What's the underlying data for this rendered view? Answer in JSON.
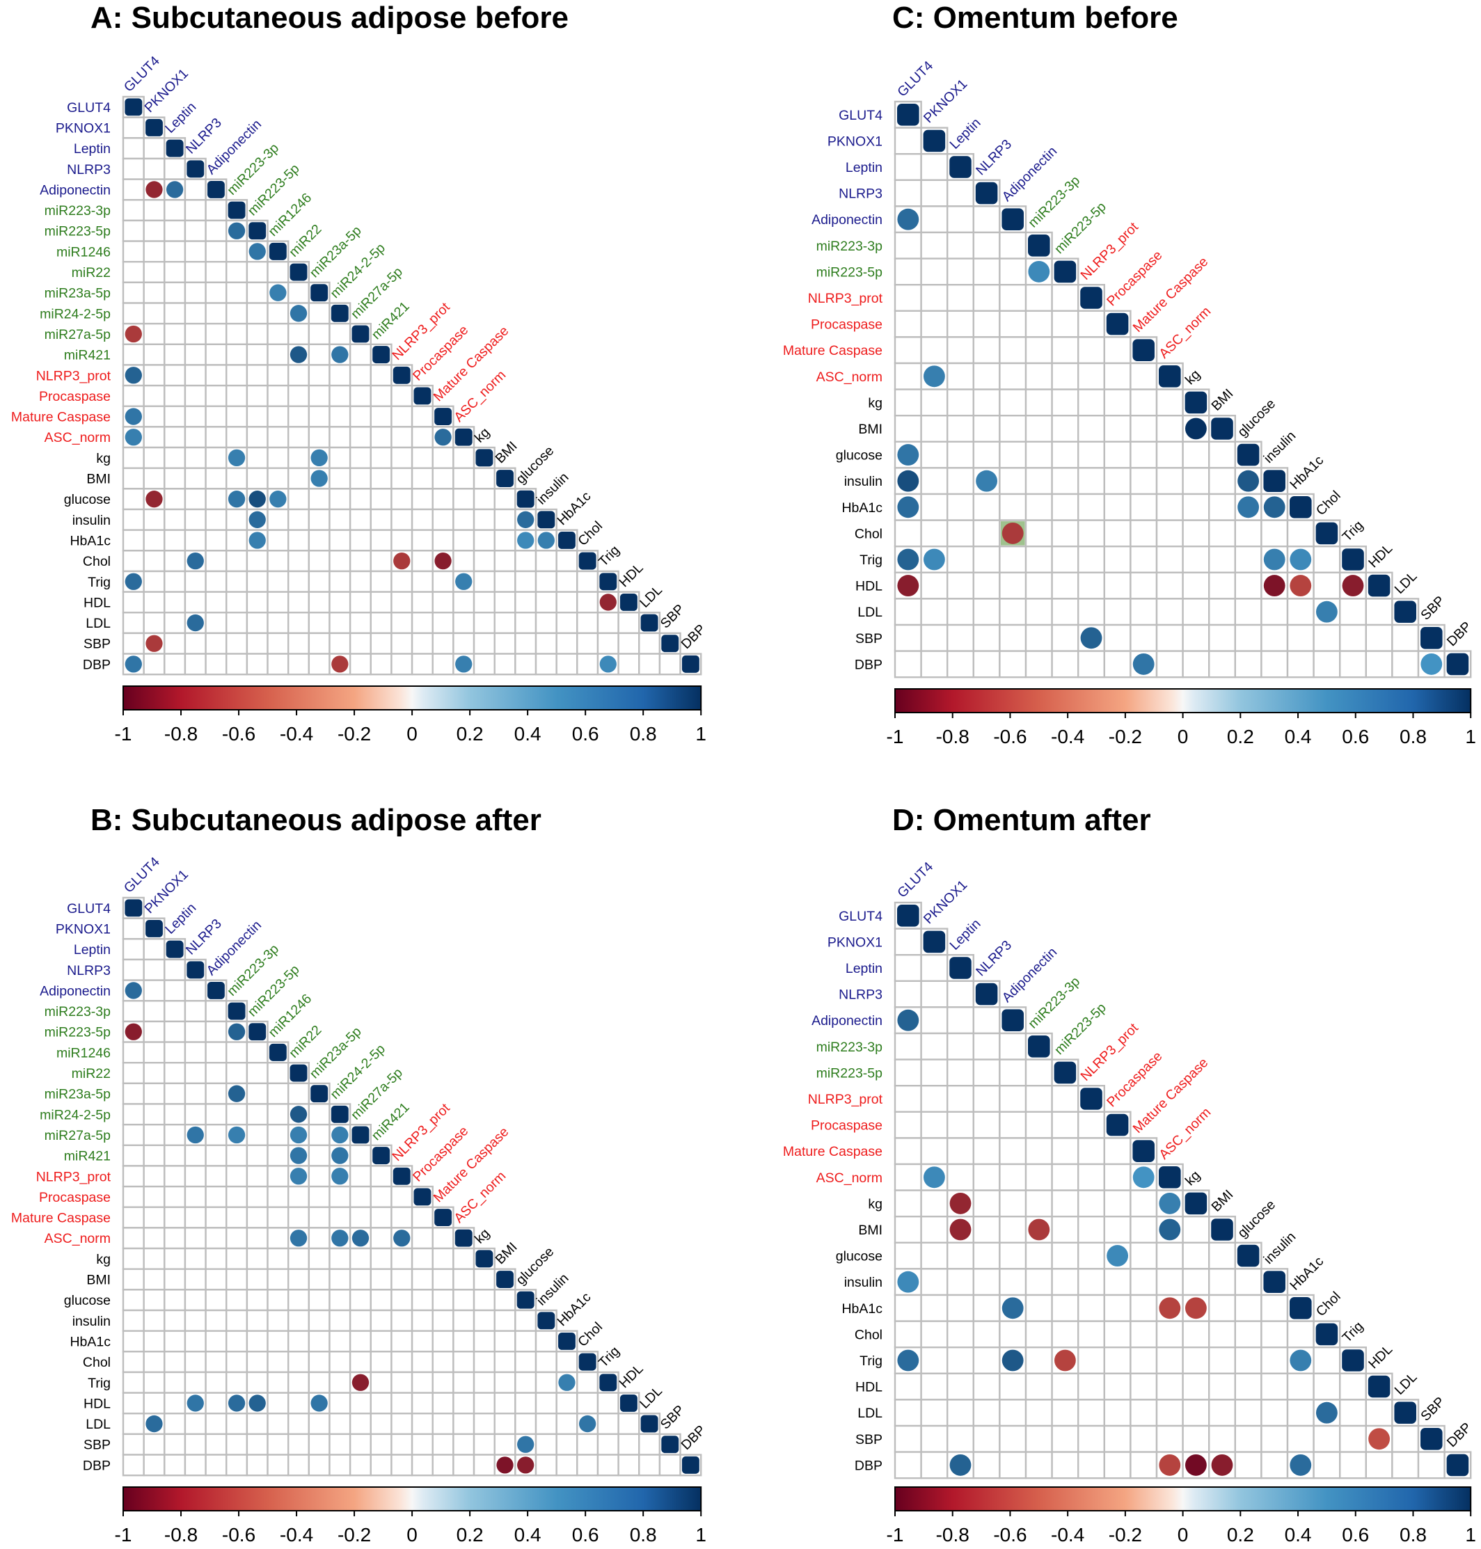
{
  "colors": {
    "gene": "#1a1a8c",
    "mirna": "#2e7d1e",
    "protein": "#ee1c1c",
    "clinical": "#000000",
    "grid": "#bdbdbd",
    "highlight": "#9fc28e",
    "scale_neg1": "#67001f",
    "scale_neg05": "#d6604d",
    "scale_0": "#f7f7f7",
    "scale_pos05": "#4393c3",
    "scale_pos1": "#053061"
  },
  "chart_data": [
    {
      "type": "heatmap",
      "title": "A: Subcutaneous adipose before",
      "variables": [
        "GLUT4",
        "PKNOX1",
        "Leptin",
        "NLRP3",
        "Adiponectin",
        "miR223-3p",
        "miR223-5p",
        "miR1246",
        "miR22",
        "miR23a-5p",
        "miR24-2-5p",
        "miR27a-5p",
        "miR421",
        "NLRP3_prot",
        "Procaspase",
        "Mature Caspase",
        "ASC_norm",
        "kg",
        "BMI",
        "glucose",
        "insulin",
        "HbA1c",
        "Chol",
        "Trig",
        "HDL",
        "LDL",
        "SBP",
        "DBP"
      ],
      "groups": [
        "gene",
        "gene",
        "gene",
        "gene",
        "gene",
        "mirna",
        "mirna",
        "mirna",
        "mirna",
        "mirna",
        "mirna",
        "mirna",
        "mirna",
        "protein",
        "protein",
        "protein",
        "protein",
        "clinical",
        "clinical",
        "clinical",
        "clinical",
        "clinical",
        "clinical",
        "clinical",
        "clinical",
        "clinical",
        "clinical",
        "clinical"
      ],
      "color_scale": {
        "min": -1,
        "max": 1,
        "ticks": [
          "-1",
          "-0.8",
          "-0.6",
          "-0.4",
          "-0.2",
          "0",
          "0.2",
          "0.4",
          "0.6",
          "0.8",
          "1"
        ]
      },
      "correlations": [
        {
          "row": "Adiponectin",
          "col": "PKNOX1",
          "r": -0.8
        },
        {
          "row": "Adiponectin",
          "col": "Leptin",
          "r": 0.7
        },
        {
          "row": "miR223-5p",
          "col": "miR223-3p",
          "r": 0.7
        },
        {
          "row": "miR1246",
          "col": "miR223-5p",
          "r": 0.65
        },
        {
          "row": "miR23a-5p",
          "col": "miR1246",
          "r": 0.6
        },
        {
          "row": "miR24-2-5p",
          "col": "miR22",
          "r": 0.65
        },
        {
          "row": "miR27a-5p",
          "col": "GLUT4",
          "r": -0.7
        },
        {
          "row": "miR421",
          "col": "miR22",
          "r": 0.8
        },
        {
          "row": "miR421",
          "col": "miR24-2-5p",
          "r": 0.65
        },
        {
          "row": "NLRP3_prot",
          "col": "GLUT4",
          "r": 0.75
        },
        {
          "row": "Mature Caspase",
          "col": "GLUT4",
          "r": 0.65
        },
        {
          "row": "ASC_norm",
          "col": "GLUT4",
          "r": 0.6
        },
        {
          "row": "ASC_norm",
          "col": "Mature Caspase",
          "r": 0.7
        },
        {
          "row": "kg",
          "col": "miR223-3p",
          "r": 0.6
        },
        {
          "row": "kg",
          "col": "miR23a-5p",
          "r": 0.6
        },
        {
          "row": "BMI",
          "col": "miR23a-5p",
          "r": 0.6
        },
        {
          "row": "glucose",
          "col": "PKNOX1",
          "r": -0.8
        },
        {
          "row": "glucose",
          "col": "miR223-3p",
          "r": 0.65
        },
        {
          "row": "glucose",
          "col": "miR223-5p",
          "r": 0.85
        },
        {
          "row": "glucose",
          "col": "miR1246",
          "r": 0.6
        },
        {
          "row": "insulin",
          "col": "miR223-5p",
          "r": 0.7
        },
        {
          "row": "insulin",
          "col": "glucose",
          "r": 0.7
        },
        {
          "row": "HbA1c",
          "col": "miR223-5p",
          "r": 0.6
        },
        {
          "row": "HbA1c",
          "col": "glucose",
          "r": 0.55
        },
        {
          "row": "HbA1c",
          "col": "insulin",
          "r": 0.6
        },
        {
          "row": "Chol",
          "col": "NLRP3",
          "r": 0.7
        },
        {
          "row": "Chol",
          "col": "NLRP3_prot",
          "r": -0.7
        },
        {
          "row": "Chol",
          "col": "Mature Caspase",
          "r": -0.85
        },
        {
          "row": "Trig",
          "col": "GLUT4",
          "r": 0.7
        },
        {
          "row": "Trig",
          "col": "ASC_norm",
          "r": 0.6
        },
        {
          "row": "HDL",
          "col": "Trig",
          "r": -0.8
        },
        {
          "row": "LDL",
          "col": "NLRP3",
          "r": 0.7
        },
        {
          "row": "SBP",
          "col": "PKNOX1",
          "r": -0.7
        },
        {
          "row": "DBP",
          "col": "GLUT4",
          "r": 0.65
        },
        {
          "row": "DBP",
          "col": "miR24-2-5p",
          "r": -0.7
        },
        {
          "row": "DBP",
          "col": "ASC_norm",
          "r": 0.6
        },
        {
          "row": "DBP",
          "col": "Trig",
          "r": 0.55
        }
      ]
    },
    {
      "type": "heatmap",
      "title": "B: Subcutaneous adipose after",
      "variables": [
        "GLUT4",
        "PKNOX1",
        "Leptin",
        "NLRP3",
        "Adiponectin",
        "miR223-3p",
        "miR223-5p",
        "miR1246",
        "miR22",
        "miR23a-5p",
        "miR24-2-5p",
        "miR27a-5p",
        "miR421",
        "NLRP3_prot",
        "Procaspase",
        "Mature Caspase",
        "ASC_norm",
        "kg",
        "BMI",
        "glucose",
        "insulin",
        "HbA1c",
        "Chol",
        "Trig",
        "HDL",
        "LDL",
        "SBP",
        "DBP"
      ],
      "groups": [
        "gene",
        "gene",
        "gene",
        "gene",
        "gene",
        "mirna",
        "mirna",
        "mirna",
        "mirna",
        "mirna",
        "mirna",
        "mirna",
        "mirna",
        "protein",
        "protein",
        "protein",
        "protein",
        "clinical",
        "clinical",
        "clinical",
        "clinical",
        "clinical",
        "clinical",
        "clinical",
        "clinical",
        "clinical",
        "clinical",
        "clinical"
      ],
      "color_scale": {
        "min": -1,
        "max": 1,
        "ticks": [
          "-1",
          "-0.8",
          "-0.6",
          "-0.4",
          "-0.2",
          "0",
          "0.2",
          "0.4",
          "0.6",
          "0.8",
          "1"
        ]
      },
      "correlations": [
        {
          "row": "Adiponectin",
          "col": "GLUT4",
          "r": 0.7
        },
        {
          "row": "miR223-5p",
          "col": "GLUT4",
          "r": -0.85
        },
        {
          "row": "miR223-5p",
          "col": "miR223-3p",
          "r": 0.75
        },
        {
          "row": "miR23a-5p",
          "col": "miR223-3p",
          "r": 0.75
        },
        {
          "row": "miR24-2-5p",
          "col": "miR22",
          "r": 0.8
        },
        {
          "row": "miR24-2-5p",
          "col": "miR24-2-5p",
          "r": 1
        },
        {
          "row": "miR27a-5p",
          "col": "NLRP3",
          "r": 0.65
        },
        {
          "row": "miR27a-5p",
          "col": "miR223-3p",
          "r": 0.6
        },
        {
          "row": "miR27a-5p",
          "col": "miR22",
          "r": 0.6
        },
        {
          "row": "miR27a-5p",
          "col": "miR24-2-5p",
          "r": 0.6
        },
        {
          "row": "miR421",
          "col": "miR22",
          "r": 0.65
        },
        {
          "row": "miR421",
          "col": "miR24-2-5p",
          "r": 0.65
        },
        {
          "row": "NLRP3_prot",
          "col": "miR22",
          "r": 0.6
        },
        {
          "row": "NLRP3_prot",
          "col": "miR24-2-5p",
          "r": 0.6
        },
        {
          "row": "ASC_norm",
          "col": "miR22",
          "r": 0.65
        },
        {
          "row": "ASC_norm",
          "col": "miR24-2-5p",
          "r": 0.65
        },
        {
          "row": "ASC_norm",
          "col": "miR27a-5p",
          "r": 0.7
        },
        {
          "row": "ASC_norm",
          "col": "NLRP3_prot",
          "r": 0.7
        },
        {
          "row": "Trig",
          "col": "miR27a-5p",
          "r": -0.85
        },
        {
          "row": "Trig",
          "col": "HbA1c",
          "r": 0.6
        },
        {
          "row": "HDL",
          "col": "NLRP3",
          "r": 0.65
        },
        {
          "row": "HDL",
          "col": "miR223-3p",
          "r": 0.7
        },
        {
          "row": "HDL",
          "col": "miR223-5p",
          "r": 0.75
        },
        {
          "row": "HDL",
          "col": "miR23a-5p",
          "r": 0.65
        },
        {
          "row": "LDL",
          "col": "PKNOX1",
          "r": 0.7
        },
        {
          "row": "LDL",
          "col": "Chol",
          "r": 0.65
        },
        {
          "row": "SBP",
          "col": "glucose",
          "r": 0.65
        },
        {
          "row": "DBP",
          "col": "BMI",
          "r": -0.9
        },
        {
          "row": "DBP",
          "col": "glucose",
          "r": -0.85
        }
      ]
    },
    {
      "type": "heatmap",
      "title": "C: Omentum before",
      "variables": [
        "GLUT4",
        "PKNOX1",
        "Leptin",
        "NLRP3",
        "Adiponectin",
        "miR223-3p",
        "miR223-5p",
        "NLRP3_prot",
        "Procaspase",
        "Mature Caspase",
        "ASC_norm",
        "kg",
        "BMI",
        "glucose",
        "insulin",
        "HbA1c",
        "Chol",
        "Trig",
        "HDL",
        "LDL",
        "SBP",
        "DBP"
      ],
      "groups": [
        "gene",
        "gene",
        "gene",
        "gene",
        "gene",
        "mirna",
        "mirna",
        "protein",
        "protein",
        "protein",
        "protein",
        "clinical",
        "clinical",
        "clinical",
        "clinical",
        "clinical",
        "clinical",
        "clinical",
        "clinical",
        "clinical",
        "clinical",
        "clinical"
      ],
      "color_scale": {
        "min": -1,
        "max": 1,
        "ticks": [
          "-1",
          "-0.8",
          "-0.6",
          "-0.4",
          "-0.2",
          "0",
          "0.2",
          "0.4",
          "0.6",
          "0.8",
          "1"
        ]
      },
      "correlations": [
        {
          "row": "Adiponectin",
          "col": "GLUT4",
          "r": 0.7
        },
        {
          "row": "miR223-5p",
          "col": "miR223-3p",
          "r": 0.55
        },
        {
          "row": "ASC_norm",
          "col": "PKNOX1",
          "r": 0.6
        },
        {
          "row": "BMI",
          "col": "kg",
          "r": 1
        },
        {
          "row": "glucose",
          "col": "GLUT4",
          "r": 0.65
        },
        {
          "row": "insulin",
          "col": "GLUT4",
          "r": 0.85
        },
        {
          "row": "insulin",
          "col": "NLRP3",
          "r": 0.6
        },
        {
          "row": "insulin",
          "col": "glucose",
          "r": 0.8
        },
        {
          "row": "HbA1c",
          "col": "GLUT4",
          "r": 0.7
        },
        {
          "row": "HbA1c",
          "col": "glucose",
          "r": 0.65
        },
        {
          "row": "HbA1c",
          "col": "insulin",
          "r": 0.75
        },
        {
          "row": "Chol",
          "col": "Adiponectin",
          "r": -0.7,
          "highlight": true
        },
        {
          "row": "Trig",
          "col": "GLUT4",
          "r": 0.75
        },
        {
          "row": "Trig",
          "col": "PKNOX1",
          "r": 0.55
        },
        {
          "row": "Trig",
          "col": "insulin",
          "r": 0.6
        },
        {
          "row": "Trig",
          "col": "HbA1c",
          "r": 0.55
        },
        {
          "row": "HDL",
          "col": "GLUT4",
          "r": -0.85
        },
        {
          "row": "HDL",
          "col": "insulin",
          "r": -0.9
        },
        {
          "row": "HDL",
          "col": "HbA1c",
          "r": -0.65
        },
        {
          "row": "HDL",
          "col": "Trig",
          "r": -0.85
        },
        {
          "row": "LDL",
          "col": "Chol",
          "r": 0.6
        },
        {
          "row": "SBP",
          "col": "NLRP3_prot",
          "r": 0.75
        },
        {
          "row": "DBP",
          "col": "Mature Caspase",
          "r": 0.65
        },
        {
          "row": "DBP",
          "col": "SBP",
          "r": 0.5
        }
      ]
    },
    {
      "type": "heatmap",
      "title": "D: Omentum after",
      "variables": [
        "GLUT4",
        "PKNOX1",
        "Leptin",
        "NLRP3",
        "Adiponectin",
        "miR223-3p",
        "miR223-5p",
        "NLRP3_prot",
        "Procaspase",
        "Mature Caspase",
        "ASC_norm",
        "kg",
        "BMI",
        "glucose",
        "insulin",
        "HbA1c",
        "Chol",
        "Trig",
        "HDL",
        "LDL",
        "SBP",
        "DBP"
      ],
      "groups": [
        "gene",
        "gene",
        "gene",
        "gene",
        "gene",
        "mirna",
        "mirna",
        "protein",
        "protein",
        "protein",
        "protein",
        "clinical",
        "clinical",
        "clinical",
        "clinical",
        "clinical",
        "clinical",
        "clinical",
        "clinical",
        "clinical",
        "clinical",
        "clinical"
      ],
      "color_scale": {
        "min": -1,
        "max": 1,
        "ticks": [
          "-1",
          "-0.8",
          "-0.6",
          "-0.4",
          "-0.2",
          "0",
          "0.2",
          "0.4",
          "0.6",
          "0.8",
          "1"
        ]
      },
      "correlations": [
        {
          "row": "Adiponectin",
          "col": "GLUT4",
          "r": 0.75
        },
        {
          "row": "ASC_norm",
          "col": "PKNOX1",
          "r": 0.55
        },
        {
          "row": "ASC_norm",
          "col": "Mature Caspase",
          "r": 0.5
        },
        {
          "row": "kg",
          "col": "Leptin",
          "r": -0.8
        },
        {
          "row": "kg",
          "col": "ASC_norm",
          "r": 0.6
        },
        {
          "row": "BMI",
          "col": "Leptin",
          "r": -0.8
        },
        {
          "row": "BMI",
          "col": "miR223-3p",
          "r": -0.7
        },
        {
          "row": "BMI",
          "col": "ASC_norm",
          "r": 0.75
        },
        {
          "row": "glucose",
          "col": "Procaspase",
          "r": 0.55
        },
        {
          "row": "insulin",
          "col": "GLUT4",
          "r": 0.55
        },
        {
          "row": "HbA1c",
          "col": "Adiponectin",
          "r": 0.7
        },
        {
          "row": "HbA1c",
          "col": "ASC_norm",
          "r": -0.65
        },
        {
          "row": "HbA1c",
          "col": "kg",
          "r": -0.65
        },
        {
          "row": "Trig",
          "col": "GLUT4",
          "r": 0.7
        },
        {
          "row": "Trig",
          "col": "Adiponectin",
          "r": 0.8
        },
        {
          "row": "Trig",
          "col": "miR223-5p",
          "r": -0.65
        },
        {
          "row": "Trig",
          "col": "HbA1c",
          "r": 0.6
        },
        {
          "row": "LDL",
          "col": "Chol",
          "r": 0.7
        },
        {
          "row": "SBP",
          "col": "HDL",
          "r": -0.6
        },
        {
          "row": "DBP",
          "col": "Leptin",
          "r": 0.75
        },
        {
          "row": "DBP",
          "col": "ASC_norm",
          "r": -0.65
        },
        {
          "row": "DBP",
          "col": "kg",
          "r": -0.95
        },
        {
          "row": "DBP",
          "col": "BMI",
          "r": -0.85
        },
        {
          "row": "DBP",
          "col": "HbA1c",
          "r": 0.7
        }
      ]
    }
  ]
}
